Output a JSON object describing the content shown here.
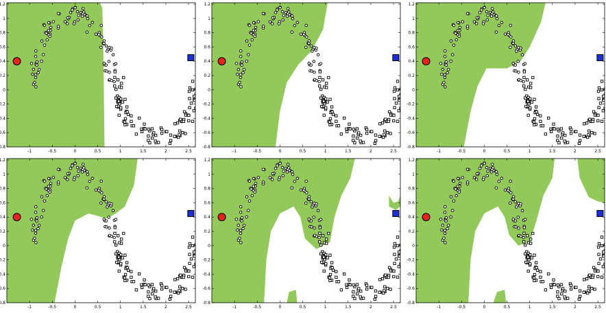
{
  "chart_data": [
    {
      "type": "scatter",
      "panel": 1,
      "xlim": [
        -1.5,
        2.65
      ],
      "ylim": [
        -0.8,
        1.22
      ],
      "xticks": [
        "-1",
        "-0.5",
        "0",
        "0.5",
        "1",
        "1.5",
        "2",
        "2.5"
      ],
      "yticks": [
        "-0.8",
        "-0.6",
        "-0.4",
        "-0.2",
        "0",
        "0.2",
        "0.4",
        "0.6",
        "0.8",
        "1",
        "1.2"
      ],
      "region_fill": "#92c95a",
      "region": [
        [
          -1.5,
          1.22
        ],
        [
          0.55,
          1.22
        ],
        [
          0.6,
          1.15
        ],
        [
          0.62,
          0.7
        ],
        [
          0.63,
          0.3
        ],
        [
          0.65,
          -0.8
        ],
        [
          -1.5,
          -0.8
        ]
      ],
      "labeled_points": [
        {
          "class": "circle",
          "x": -1.28,
          "y": 0.4,
          "color": "#e2241d"
        },
        {
          "class": "square",
          "x": 2.55,
          "y": 0.45,
          "color": "#1f2fd6"
        }
      ]
    },
    {
      "type": "scatter",
      "panel": 2,
      "xlim": [
        -1.5,
        2.65
      ],
      "ylim": [
        -0.8,
        1.22
      ],
      "xticks": [
        "-1",
        "-0.5",
        "0",
        "0.5",
        "1",
        "1.5",
        "2",
        "2.5"
      ],
      "yticks": [
        "-0.8",
        "-0.6",
        "-0.4",
        "-0.2",
        "0",
        "0.2",
        "0.4",
        "0.6",
        "0.8",
        "1",
        "1.2"
      ],
      "region_fill": "#92c95a",
      "region": [
        [
          -1.5,
          1.22
        ],
        [
          1.05,
          1.22
        ],
        [
          0.95,
          0.85
        ],
        [
          0.7,
          0.55
        ],
        [
          0.4,
          0.35
        ],
        [
          0.15,
          0.1
        ],
        [
          0.0,
          -0.3
        ],
        [
          -0.1,
          -0.8
        ],
        [
          -1.5,
          -0.8
        ]
      ],
      "labeled_points": [
        {
          "class": "circle",
          "x": -1.28,
          "y": 0.4,
          "color": "#e2241d"
        },
        {
          "class": "square",
          "x": 2.55,
          "y": 0.45,
          "color": "#1f2fd6"
        }
      ]
    },
    {
      "type": "scatter",
      "panel": 3,
      "xlim": [
        -1.5,
        2.65
      ],
      "ylim": [
        -0.8,
        1.22
      ],
      "xticks": [
        "-1",
        "-0.5",
        "0",
        "0.5",
        "1",
        "1.5",
        "2",
        "2.5"
      ],
      "yticks": [
        "-0.8",
        "-0.6",
        "-0.4",
        "-0.2",
        "0",
        "0.2",
        "0.4",
        "0.6",
        "0.8",
        "1",
        "1.2"
      ],
      "region_fill": "#92c95a",
      "region": [
        [
          -1.5,
          1.22
        ],
        [
          1.35,
          1.22
        ],
        [
          1.25,
          0.95
        ],
        [
          1.0,
          0.6
        ],
        [
          0.8,
          0.4
        ],
        [
          0.5,
          0.3
        ],
        [
          0.05,
          0.3
        ],
        [
          -0.15,
          0.05
        ],
        [
          -0.3,
          -0.3
        ],
        [
          -0.45,
          -0.8
        ],
        [
          -1.5,
          -0.8
        ]
      ],
      "labeled_points": [
        {
          "class": "circle",
          "x": -1.28,
          "y": 0.4,
          "color": "#e2241d"
        },
        {
          "class": "square",
          "x": 2.55,
          "y": 0.45,
          "color": "#1f2fd6"
        }
      ]
    },
    {
      "type": "scatter",
      "panel": 4,
      "xlim": [
        -1.5,
        2.65
      ],
      "ylim": [
        -0.8,
        1.22
      ],
      "xticks": [
        "-1",
        "-0.5",
        "0",
        "0.5",
        "1",
        "1.5",
        "2",
        "2.5"
      ],
      "yticks": [
        "-0.8",
        "-0.6",
        "-0.4",
        "-0.2",
        "0",
        "0.2",
        "0.4",
        "0.6",
        "0.8",
        "1",
        "1.2"
      ],
      "region_fill": "#92c95a",
      "region": [
        [
          -1.5,
          1.22
        ],
        [
          1.38,
          1.22
        ],
        [
          1.3,
          0.85
        ],
        [
          1.1,
          0.55
        ],
        [
          0.9,
          0.45
        ],
        [
          0.7,
          0.38
        ],
        [
          0.3,
          0.45
        ],
        [
          0.0,
          0.35
        ],
        [
          -0.15,
          0.1
        ],
        [
          -0.3,
          -0.3
        ],
        [
          -0.45,
          -0.8
        ],
        [
          -1.5,
          -0.8
        ]
      ],
      "labeled_points": [
        {
          "class": "circle",
          "x": -1.28,
          "y": 0.4,
          "color": "#e2241d"
        },
        {
          "class": "square",
          "x": 2.55,
          "y": 0.45,
          "color": "#1f2fd6"
        }
      ]
    },
    {
      "type": "scatter",
      "panel": 5,
      "xlim": [
        -1.5,
        2.65
      ],
      "ylim": [
        -0.8,
        1.22
      ],
      "xticks": [
        "-1",
        "-0.5",
        "0",
        "0.5",
        "1",
        "1.5",
        "2",
        "2.5"
      ],
      "yticks": [
        "-0.8",
        "-0.6",
        "-0.4",
        "-0.2",
        "0",
        "0.2",
        "0.4",
        "0.6",
        "0.8",
        "1",
        "1.2"
      ],
      "region_fill": "#92c95a",
      "region": [
        [
          -1.5,
          1.22
        ],
        [
          1.65,
          1.22
        ],
        [
          1.55,
          0.95
        ],
        [
          1.35,
          0.7
        ],
        [
          1.2,
          0.4
        ],
        [
          1.1,
          0.05
        ],
        [
          0.8,
          -0.05
        ],
        [
          0.55,
          0.1
        ],
        [
          0.45,
          0.4
        ],
        [
          0.3,
          0.55
        ],
        [
          0.0,
          0.45
        ],
        [
          -0.2,
          0.2
        ],
        [
          -0.3,
          -0.2
        ],
        [
          -0.35,
          -0.8
        ],
        [
          -1.5,
          -0.8
        ]
      ],
      "extra_regions": [
        [
          [
            0.15,
            -0.8
          ],
          [
            0.2,
            -0.65
          ],
          [
            0.35,
            -0.62
          ],
          [
            0.38,
            -0.8
          ]
        ],
        [
          [
            2.4,
            0.7
          ],
          [
            2.5,
            0.6
          ],
          [
            2.6,
            0.62
          ],
          [
            2.65,
            0.7
          ],
          [
            2.65,
            0.55
          ],
          [
            2.55,
            0.5
          ],
          [
            2.4,
            0.55
          ]
        ]
      ],
      "labeled_points": [
        {
          "class": "circle",
          "x": -1.28,
          "y": 0.4,
          "color": "#e2241d"
        },
        {
          "class": "square",
          "x": 2.55,
          "y": 0.45,
          "color": "#1f2fd6"
        }
      ]
    },
    {
      "type": "scatter",
      "panel": 6,
      "xlim": [
        -1.5,
        2.65
      ],
      "ylim": [
        -0.8,
        1.22
      ],
      "xticks": [
        "-1",
        "-0.5",
        "0",
        "0.5",
        "1",
        "1.5",
        "2",
        "2.5"
      ],
      "yticks": [
        "-0.8",
        "-0.6",
        "-0.4",
        "-0.2",
        "0",
        "0.2",
        "0.4",
        "0.6",
        "0.8",
        "1",
        "1.2"
      ],
      "region_fill": "#92c95a",
      "region": [
        [
          -1.5,
          1.22
        ],
        [
          1.55,
          1.22
        ],
        [
          1.5,
          0.95
        ],
        [
          1.3,
          0.7
        ],
        [
          1.15,
          0.35
        ],
        [
          1.0,
          0.05
        ],
        [
          0.75,
          0.0
        ],
        [
          0.55,
          0.15
        ],
        [
          0.45,
          0.4
        ],
        [
          0.3,
          0.55
        ],
        [
          0.0,
          0.45
        ],
        [
          -0.2,
          0.2
        ],
        [
          -0.3,
          -0.2
        ],
        [
          -0.35,
          -0.8
        ],
        [
          -1.5,
          -0.8
        ]
      ],
      "extra_regions": [
        [
          [
            0.2,
            -0.8
          ],
          [
            0.28,
            -0.65
          ],
          [
            0.45,
            -0.62
          ],
          [
            0.48,
            -0.8
          ]
        ],
        [
          [
            2.05,
            1.22
          ],
          [
            2.65,
            1.22
          ],
          [
            2.65,
            0.6
          ],
          [
            2.5,
            0.62
          ],
          [
            2.3,
            0.68
          ],
          [
            2.1,
            0.95
          ]
        ]
      ],
      "labeled_points": [
        {
          "class": "circle",
          "x": -1.28,
          "y": 0.4,
          "color": "#e2241d"
        },
        {
          "class": "square",
          "x": 2.55,
          "y": 0.45,
          "color": "#1f2fd6"
        }
      ]
    }
  ],
  "colors": {
    "region": "#92c95a",
    "circle_label": "#e2241d",
    "square_label": "#1f2fd6"
  }
}
